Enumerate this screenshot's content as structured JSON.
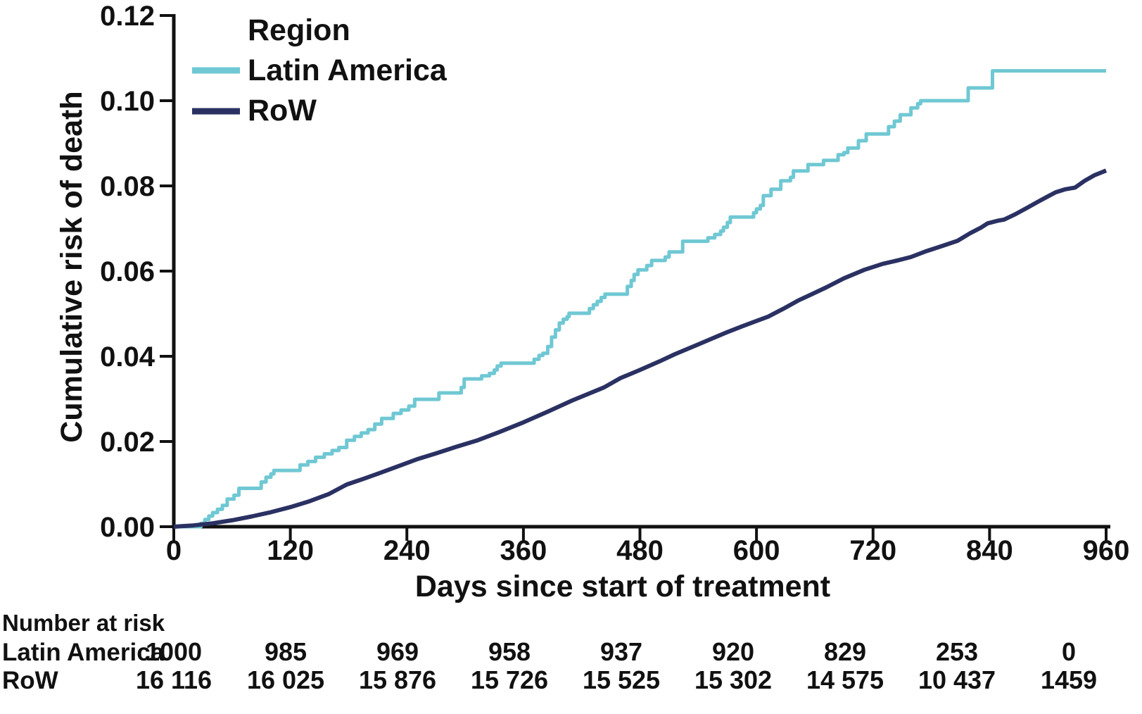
{
  "chart_data": {
    "type": "line",
    "subtype": "kaplan-meier-cumulative-incidence",
    "title": "",
    "xlabel": "Days since start of treatment",
    "ylabel": "Cumulative risk of death",
    "xlim": [
      0,
      960
    ],
    "ylim": [
      0,
      0.12
    ],
    "xticks": [
      0,
      120,
      240,
      360,
      480,
      600,
      720,
      840,
      960
    ],
    "ytick_labels": [
      "0.00",
      "0.02",
      "0.04",
      "0.06",
      "0.08",
      "0.10",
      "0.12"
    ],
    "ytick_step": 0.02,
    "grid": false,
    "legend": {
      "title": "Region",
      "position": "top-left",
      "entries": [
        "Latin America",
        "RoW"
      ]
    },
    "colors": {
      "latin_america": "#6fc8d3",
      "row": "#2a3162",
      "axis": "#111111",
      "text": "#111111"
    },
    "series": [
      {
        "name": "Latin America",
        "color": "#6fc8d3",
        "style": "step",
        "stroke_width": 5,
        "points": [
          [
            0,
            0
          ],
          [
            28,
            0.0008
          ],
          [
            32,
            0.0017
          ],
          [
            36,
            0.0025
          ],
          [
            40,
            0.0033
          ],
          [
            45,
            0.0041
          ],
          [
            50,
            0.005
          ],
          [
            55,
            0.0065
          ],
          [
            62,
            0.0074
          ],
          [
            67,
            0.009
          ],
          [
            90,
            0.0105
          ],
          [
            95,
            0.0116
          ],
          [
            100,
            0.0124
          ],
          [
            103,
            0.0132
          ],
          [
            130,
            0.0145
          ],
          [
            138,
            0.0153
          ],
          [
            146,
            0.0163
          ],
          [
            155,
            0.0171
          ],
          [
            163,
            0.0179
          ],
          [
            170,
            0.0186
          ],
          [
            178,
            0.0203
          ],
          [
            186,
            0.0212
          ],
          [
            193,
            0.022
          ],
          [
            200,
            0.0228
          ],
          [
            207,
            0.0241
          ],
          [
            214,
            0.0254
          ],
          [
            226,
            0.0266
          ],
          [
            234,
            0.0274
          ],
          [
            242,
            0.0283
          ],
          [
            248,
            0.0299
          ],
          [
            273,
            0.0314
          ],
          [
            296,
            0.0327
          ],
          [
            299,
            0.0347
          ],
          [
            317,
            0.0354
          ],
          [
            325,
            0.036
          ],
          [
            330,
            0.0368
          ],
          [
            333,
            0.0377
          ],
          [
            337,
            0.0384
          ],
          [
            371,
            0.0393
          ],
          [
            376,
            0.0402
          ],
          [
            380,
            0.0407
          ],
          [
            385,
            0.0423
          ],
          [
            389,
            0.0445
          ],
          [
            393,
            0.0462
          ],
          [
            397,
            0.0478
          ],
          [
            401,
            0.0487
          ],
          [
            405,
            0.0493
          ],
          [
            407,
            0.0501
          ],
          [
            428,
            0.0512
          ],
          [
            432,
            0.0521
          ],
          [
            436,
            0.0529
          ],
          [
            440,
            0.0538
          ],
          [
            444,
            0.0546
          ],
          [
            467,
            0.0564
          ],
          [
            471,
            0.0578
          ],
          [
            474,
            0.0592
          ],
          [
            478,
            0.0603
          ],
          [
            487,
            0.0613
          ],
          [
            492,
            0.0625
          ],
          [
            506,
            0.0633
          ],
          [
            510,
            0.0645
          ],
          [
            524,
            0.067
          ],
          [
            550,
            0.0678
          ],
          [
            557,
            0.0686
          ],
          [
            563,
            0.0694
          ],
          [
            566,
            0.0703
          ],
          [
            570,
            0.0714
          ],
          [
            573,
            0.0727
          ],
          [
            597,
            0.0737
          ],
          [
            600,
            0.0746
          ],
          [
            604,
            0.0754
          ],
          [
            607,
            0.0777
          ],
          [
            615,
            0.0792
          ],
          [
            625,
            0.0812
          ],
          [
            635,
            0.082
          ],
          [
            638,
            0.0835
          ],
          [
            653,
            0.085
          ],
          [
            669,
            0.086
          ],
          [
            684,
            0.0873
          ],
          [
            690,
            0.0878
          ],
          [
            694,
            0.0889
          ],
          [
            705,
            0.0906
          ],
          [
            713,
            0.0922
          ],
          [
            736,
            0.0939
          ],
          [
            742,
            0.0952
          ],
          [
            748,
            0.0967
          ],
          [
            759,
            0.0983
          ],
          [
            766,
            0.0993
          ],
          [
            769,
            0.1
          ],
          [
            818,
            0.103
          ],
          [
            843,
            0.107
          ],
          [
            960,
            0.107
          ]
        ]
      },
      {
        "name": "RoW",
        "color": "#2a3162",
        "style": "line",
        "stroke_width": 6,
        "points": [
          [
            0,
            0
          ],
          [
            20,
            0.0003
          ],
          [
            40,
            0.0008
          ],
          [
            60,
            0.0015
          ],
          [
            80,
            0.0024
          ],
          [
            100,
            0.0034
          ],
          [
            120,
            0.0046
          ],
          [
            140,
            0.006
          ],
          [
            160,
            0.0077
          ],
          [
            178,
            0.0099
          ],
          [
            195,
            0.0112
          ],
          [
            212,
            0.0126
          ],
          [
            230,
            0.0141
          ],
          [
            250,
            0.0158
          ],
          [
            270,
            0.0172
          ],
          [
            290,
            0.0187
          ],
          [
            313,
            0.0203
          ],
          [
            335,
            0.0222
          ],
          [
            360,
            0.0245
          ],
          [
            385,
            0.027
          ],
          [
            410,
            0.0296
          ],
          [
            443,
            0.0327
          ],
          [
            460,
            0.0349
          ],
          [
            480,
            0.0368
          ],
          [
            500,
            0.0388
          ],
          [
            516,
            0.0405
          ],
          [
            540,
            0.0428
          ],
          [
            568,
            0.0455
          ],
          [
            585,
            0.047
          ],
          [
            600,
            0.0483
          ],
          [
            612,
            0.0493
          ],
          [
            628,
            0.0512
          ],
          [
            643,
            0.0531
          ],
          [
            658,
            0.0547
          ],
          [
            672,
            0.0562
          ],
          [
            690,
            0.0583
          ],
          [
            711,
            0.0603
          ],
          [
            730,
            0.0617
          ],
          [
            745,
            0.0625
          ],
          [
            759,
            0.0633
          ],
          [
            775,
            0.0647
          ],
          [
            790,
            0.0658
          ],
          [
            807,
            0.0671
          ],
          [
            820,
            0.0689
          ],
          [
            831,
            0.0702
          ],
          [
            838,
            0.0712
          ],
          [
            848,
            0.0718
          ],
          [
            855,
            0.0721
          ],
          [
            867,
            0.0734
          ],
          [
            879,
            0.0749
          ],
          [
            890,
            0.0763
          ],
          [
            899,
            0.0774
          ],
          [
            908,
            0.0785
          ],
          [
            918,
            0.0792
          ],
          [
            928,
            0.0796
          ],
          [
            938,
            0.0812
          ],
          [
            948,
            0.0825
          ],
          [
            960,
            0.0836
          ]
        ]
      }
    ],
    "number_at_risk": {
      "header": "Number at risk",
      "columns_days": [
        0,
        120,
        240,
        360,
        480,
        600,
        720,
        840,
        960
      ],
      "rows": [
        {
          "name": "Latin America",
          "values": [
            "1000",
            "985",
            "969",
            "958",
            "937",
            "920",
            "829",
            "253",
            "0"
          ]
        },
        {
          "name": "RoW",
          "values": [
            "16 116",
            "16 025",
            "15 876",
            "15 726",
            "15 525",
            "15 302",
            "14 575",
            "10 437",
            "1459"
          ]
        }
      ]
    }
  }
}
